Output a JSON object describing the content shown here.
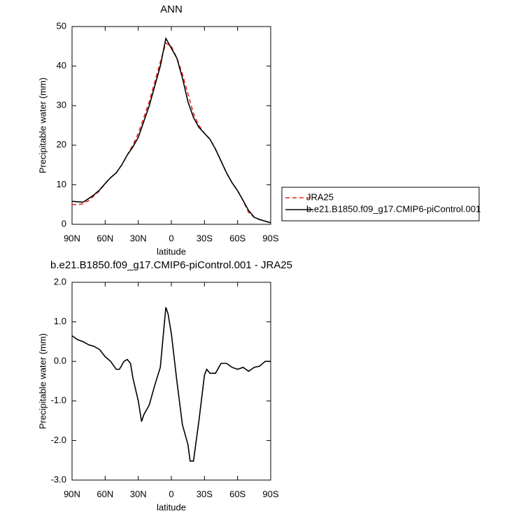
{
  "chart_data": [
    {
      "type": "line",
      "title": "ANN",
      "x_label": "latitude",
      "y_label": "Precipitable water (mm)",
      "x": [
        90,
        85,
        80,
        75,
        70,
        65,
        60,
        55,
        50,
        45,
        40,
        35,
        30,
        25,
        20,
        15,
        10,
        5,
        0,
        -5,
        -10,
        -15,
        -20,
        -25,
        -30,
        -35,
        -40,
        -45,
        -50,
        -55,
        -60,
        -65,
        -70,
        -75,
        -80,
        -85,
        -90
      ],
      "xlim": [
        90,
        -90
      ],
      "xticks": [
        {
          "value": 90,
          "label": "90N"
        },
        {
          "value": 60,
          "label": "60N"
        },
        {
          "value": 30,
          "label": "30N"
        },
        0,
        {
          "value": -30,
          "label": "30S"
        },
        {
          "value": -60,
          "label": "60S"
        },
        {
          "value": -90,
          "label": "90S"
        }
      ],
      "ylim": [
        0,
        50
      ],
      "yticks": [
        0,
        10,
        20,
        30,
        40,
        50
      ],
      "legend": "right",
      "series": [
        {
          "name": "JRA25",
          "color": "#e8251f",
          "line_style": "dashed",
          "values": [
            5,
            5,
            5.2,
            6,
            7.2,
            8.5,
            10.3,
            11.8,
            13,
            15,
            17.5,
            20,
            23,
            27,
            31,
            36,
            41,
            45.8,
            45,
            42,
            38,
            33,
            28,
            25,
            23,
            21.5,
            19,
            16,
            13,
            10.5,
            8.5,
            6,
            3,
            1.8,
            1.2,
            0.8,
            0.3
          ]
        },
        {
          "name": "b.e21.B1850.f09_g17.CMIP6-piControl.001",
          "color": "#000000",
          "line_style": "solid",
          "values": [
            5.8,
            5.7,
            5.6,
            6.5,
            7.5,
            8.7,
            10.3,
            11.8,
            13,
            15,
            17.5,
            19.5,
            22,
            26,
            30,
            35,
            40,
            47,
            44.5,
            42,
            37,
            31,
            27,
            24.5,
            23,
            21.5,
            19,
            16,
            13,
            10.5,
            8.5,
            6,
            3.5,
            1.8,
            1.2,
            0.8,
            0.4
          ]
        }
      ]
    },
    {
      "type": "line",
      "title": "b.e21.B1850.f09_g17.CMIP6-piControl.001 - JRA25",
      "x_label": "latitude",
      "y_label": "Precipitable water (mm)",
      "x": [
        90,
        85,
        80,
        75,
        70,
        65,
        60,
        55,
        50,
        47,
        43,
        40,
        37,
        35,
        30,
        27,
        25,
        20,
        15,
        10,
        5,
        3,
        0,
        -5,
        -10,
        -15,
        -17,
        -20,
        -25,
        -30,
        -32,
        -35,
        -40,
        -45,
        -50,
        -55,
        -60,
        -65,
        -70,
        -75,
        -80,
        -85,
        -90
      ],
      "xlim": [
        90,
        -90
      ],
      "xticks": [
        {
          "value": 90,
          "label": "90N"
        },
        {
          "value": 60,
          "label": "60N"
        },
        {
          "value": 30,
          "label": "30N"
        },
        0,
        {
          "value": -30,
          "label": "30S"
        },
        {
          "value": -60,
          "label": "60S"
        },
        {
          "value": -90,
          "label": "90S"
        }
      ],
      "ylim": [
        -3,
        2
      ],
      "yticks": [
        {
          "value": -3,
          "label": "-3.0"
        },
        {
          "value": -2,
          "label": "-2.0"
        },
        {
          "value": -1,
          "label": "-1.0"
        },
        {
          "value": 0,
          "label": "0.0"
        },
        {
          "value": 1,
          "label": "1.0"
        },
        {
          "value": 2,
          "label": "2.0"
        }
      ],
      "color": "#000000",
      "values": [
        0.65,
        0.55,
        0.5,
        0.42,
        0.38,
        0.3,
        0.12,
        0.0,
        -0.2,
        -0.2,
        0.0,
        0.05,
        -0.05,
        -0.4,
        -1.0,
        -1.52,
        -1.35,
        -1.1,
        -0.6,
        -0.15,
        1.37,
        1.2,
        0.7,
        -0.5,
        -1.6,
        -2.1,
        -2.52,
        -2.52,
        -1.5,
        -0.35,
        -0.2,
        -0.3,
        -0.3,
        -0.05,
        -0.05,
        -0.15,
        -0.2,
        -0.15,
        -0.25,
        -0.15,
        -0.12,
        0.0,
        0.0
      ]
    }
  ]
}
